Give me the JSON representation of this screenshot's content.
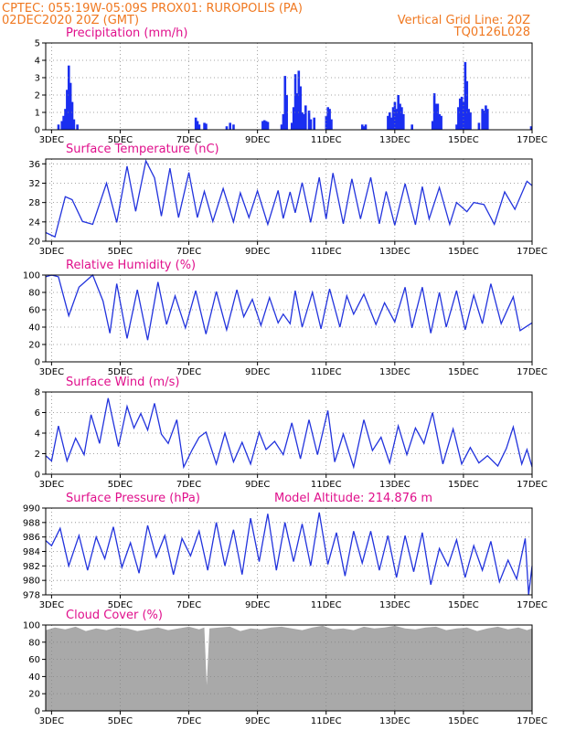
{
  "header": {
    "line1": "CPTEC:   055:19W-05:09S   PROX01: RUROPOLIS (PA)",
    "line2_left": "02DEC2020 20Z (GMT)",
    "line2_right": "Vertical Grid Line: 20Z",
    "line3_right": "TQ0126L028"
  },
  "x_axis": {
    "tick_labels": [
      "3DEC",
      "5DEC",
      "7DEC",
      "9DEC",
      "11DEC",
      "13DEC",
      "15DEC",
      "17DEC"
    ],
    "tick_days": [
      3,
      5,
      7,
      9,
      11,
      13,
      15,
      17
    ],
    "range_days": [
      2.83,
      17.0
    ]
  },
  "colors": {
    "line": "#2233dd",
    "bar": "#1a2ef0",
    "cloud": "#a9a9a9",
    "header": "#f07820",
    "title": "#e0108c"
  },
  "chart_data": [
    {
      "type": "bar",
      "title": "Precipitation (mm/h)",
      "ylim": [
        0,
        5
      ],
      "yticks": [
        0,
        1,
        2,
        3,
        4,
        5
      ],
      "grid": true,
      "x": [
        3.2,
        3.3,
        3.35,
        3.4,
        3.45,
        3.5,
        3.55,
        3.6,
        3.65,
        3.75,
        7.2,
        7.25,
        7.3,
        7.45,
        7.5,
        8.1,
        8.2,
        8.3,
        9.15,
        9.2,
        9.25,
        9.3,
        9.7,
        9.75,
        9.8,
        9.85,
        10.0,
        10.05,
        10.1,
        10.15,
        10.2,
        10.25,
        10.3,
        10.35,
        10.4,
        10.5,
        10.55,
        10.65,
        11.0,
        11.05,
        11.1,
        11.15,
        12.05,
        12.1,
        12.15,
        12.8,
        12.85,
        12.9,
        12.95,
        13.0,
        13.05,
        13.1,
        13.15,
        13.2,
        13.25,
        13.5,
        14.1,
        14.15,
        14.2,
        14.25,
        14.3,
        14.35,
        14.8,
        14.85,
        14.9,
        14.95,
        15.0,
        15.05,
        15.1,
        15.15,
        15.2,
        15.45,
        15.55,
        15.6,
        15.65,
        15.7,
        16.97
      ],
      "values": [
        0.3,
        0.5,
        0.8,
        1.2,
        2.3,
        3.7,
        2.7,
        1.6,
        0.6,
        0.3,
        0.7,
        0.5,
        0.3,
        0.4,
        0.35,
        0.2,
        0.4,
        0.3,
        0.5,
        0.55,
        0.5,
        0.45,
        0.3,
        0.9,
        3.1,
        2.0,
        0.4,
        1.3,
        3.2,
        2.1,
        3.4,
        2.5,
        1.0,
        0.9,
        1.4,
        1.1,
        0.6,
        0.7,
        0.8,
        1.3,
        1.2,
        0.6,
        0.3,
        0.2,
        0.3,
        0.8,
        1.0,
        0.7,
        1.3,
        1.6,
        1.2,
        2.0,
        1.5,
        1.3,
        0.9,
        0.3,
        0.5,
        2.1,
        1.5,
        1.5,
        0.9,
        0.8,
        0.3,
        1.3,
        1.8,
        1.9,
        1.6,
        3.9,
        2.8,
        1.2,
        1.0,
        0.4,
        1.2,
        1.1,
        1.4,
        1.2,
        0.2
      ]
    },
    {
      "type": "line",
      "title": "Surface Temperature (nC)",
      "ylim": [
        20,
        37
      ],
      "yticks": [
        20,
        24,
        28,
        32,
        36
      ],
      "grid": true,
      "x": [
        2.83,
        3.1,
        3.4,
        3.6,
        3.9,
        4.2,
        4.6,
        4.9,
        5.2,
        5.45,
        5.75,
        6.0,
        6.2,
        6.45,
        6.7,
        7.0,
        7.25,
        7.45,
        7.7,
        8.0,
        8.3,
        8.5,
        8.75,
        9.0,
        9.3,
        9.6,
        9.75,
        9.95,
        10.1,
        10.3,
        10.55,
        10.8,
        11.0,
        11.2,
        11.5,
        11.75,
        12.0,
        12.3,
        12.55,
        12.75,
        13.0,
        13.3,
        13.6,
        13.8,
        14.0,
        14.3,
        14.6,
        14.8,
        15.1,
        15.3,
        15.6,
        15.9,
        16.2,
        16.5,
        16.85,
        17.0
      ],
      "values": [
        21.8,
        20.9,
        29.2,
        28.6,
        24.1,
        23.5,
        32.0,
        23.9,
        35.5,
        26.2,
        36.6,
        33.1,
        25.2,
        35.1,
        24.9,
        34.2,
        24.9,
        30.3,
        24.1,
        30.9,
        24.0,
        30.0,
        24.9,
        30.4,
        23.5,
        30.5,
        24.7,
        30.2,
        25.9,
        32.1,
        23.9,
        33.2,
        24.6,
        34.1,
        23.6,
        32.9,
        24.6,
        33.2,
        23.6,
        30.3,
        23.3,
        31.9,
        23.4,
        31.3,
        24.6,
        31.1,
        23.5,
        28.0,
        26.1,
        28.0,
        27.6,
        23.5,
        30.2,
        26.6,
        32.4,
        31.5
      ]
    },
    {
      "type": "line",
      "title": "Relative Humidity (%)",
      "ylim": [
        0,
        100
      ],
      "yticks": [
        0,
        20,
        40,
        60,
        80,
        100
      ],
      "grid": true,
      "x": [
        2.83,
        3.0,
        3.2,
        3.5,
        3.8,
        4.2,
        4.5,
        4.7,
        4.9,
        5.2,
        5.5,
        5.8,
        6.1,
        6.35,
        6.6,
        6.9,
        7.2,
        7.5,
        7.8,
        8.1,
        8.4,
        8.6,
        8.85,
        9.1,
        9.35,
        9.6,
        9.75,
        9.95,
        10.1,
        10.3,
        10.6,
        10.85,
        11.1,
        11.4,
        11.6,
        11.8,
        12.1,
        12.45,
        12.7,
        13.0,
        13.3,
        13.5,
        13.8,
        14.05,
        14.3,
        14.5,
        14.8,
        15.05,
        15.3,
        15.55,
        15.8,
        16.1,
        16.45,
        16.65,
        17.0
      ],
      "values": [
        98,
        100,
        98,
        53,
        86,
        100,
        70,
        33,
        90,
        27,
        83,
        25,
        92,
        43,
        76,
        39,
        82,
        32,
        81,
        37,
        83,
        52,
        72,
        42,
        74,
        45,
        55,
        44,
        82,
        40,
        80,
        38,
        84,
        40,
        76,
        55,
        78,
        43,
        68,
        46,
        86,
        39,
        86,
        33,
        80,
        40,
        82,
        37,
        77,
        44,
        90,
        44,
        75,
        36,
        45
      ]
    },
    {
      "type": "line",
      "title": "Surface Wind (m/s)",
      "ylim": [
        0,
        8
      ],
      "yticks": [
        0,
        2,
        4,
        6,
        8
      ],
      "grid": true,
      "x": [
        2.83,
        3.0,
        3.2,
        3.45,
        3.7,
        3.95,
        4.15,
        4.4,
        4.65,
        4.95,
        5.2,
        5.4,
        5.6,
        5.8,
        6.0,
        6.2,
        6.4,
        6.65,
        6.85,
        7.1,
        7.3,
        7.5,
        7.8,
        8.05,
        8.3,
        8.55,
        8.8,
        9.05,
        9.25,
        9.5,
        9.75,
        10.0,
        10.25,
        10.5,
        10.75,
        11.05,
        11.25,
        11.5,
        11.8,
        12.1,
        12.35,
        12.6,
        12.85,
        13.1,
        13.35,
        13.6,
        13.85,
        14.1,
        14.4,
        14.7,
        14.95,
        15.2,
        15.45,
        15.7,
        16.0,
        16.25,
        16.45,
        16.7,
        16.85,
        17.0
      ],
      "values": [
        1.8,
        1.3,
        4.7,
        1.3,
        3.5,
        1.9,
        5.8,
        3.0,
        7.4,
        2.7,
        6.6,
        4.5,
        5.9,
        4.3,
        6.9,
        3.9,
        3.0,
        5.3,
        0.7,
        2.4,
        3.6,
        4.1,
        1.0,
        4.0,
        1.2,
        3.1,
        1.0,
        4.1,
        2.4,
        3.2,
        1.9,
        5.0,
        1.5,
        5.3,
        1.9,
        6.2,
        1.2,
        3.9,
        0.7,
        5.3,
        2.3,
        3.6,
        1.1,
        4.7,
        1.9,
        4.5,
        3.0,
        6.0,
        1.0,
        4.4,
        1.0,
        2.6,
        1.1,
        1.8,
        0.8,
        2.5,
        4.6,
        1.0,
        2.4,
        0.7
      ]
    },
    {
      "type": "line",
      "title": "Surface Pressure (hPa)",
      "annotation": "Model Altitude: 214.876 m",
      "ylim": [
        978,
        990
      ],
      "yticks": [
        978,
        980,
        982,
        984,
        986,
        988,
        990
      ],
      "grid": true,
      "x": [
        2.83,
        3.0,
        3.25,
        3.5,
        3.8,
        4.05,
        4.3,
        4.55,
        4.8,
        5.05,
        5.3,
        5.55,
        5.8,
        6.05,
        6.3,
        6.55,
        6.8,
        7.05,
        7.3,
        7.55,
        7.8,
        8.05,
        8.3,
        8.55,
        8.8,
        9.05,
        9.3,
        9.55,
        9.8,
        10.05,
        10.3,
        10.55,
        10.8,
        11.05,
        11.3,
        11.55,
        11.8,
        12.05,
        12.3,
        12.55,
        12.8,
        13.05,
        13.3,
        13.55,
        13.8,
        14.05,
        14.3,
        14.55,
        14.8,
        15.05,
        15.3,
        15.55,
        15.8,
        16.05,
        16.3,
        16.55,
        16.8,
        16.9,
        17.0
      ],
      "values": [
        985.5,
        984.8,
        987.2,
        982.0,
        986.2,
        981.4,
        986.0,
        983.0,
        987.4,
        981.8,
        985.2,
        981.0,
        987.6,
        983.2,
        986.2,
        980.8,
        985.8,
        983.4,
        986.8,
        981.4,
        988.0,
        982.0,
        987.0,
        980.8,
        988.6,
        982.6,
        989.2,
        981.4,
        988.0,
        982.6,
        987.8,
        982.0,
        989.4,
        982.2,
        986.6,
        980.6,
        986.8,
        982.4,
        986.8,
        981.4,
        986.2,
        980.4,
        986.2,
        981.2,
        986.6,
        979.4,
        984.4,
        982.0,
        985.6,
        980.4,
        984.8,
        981.4,
        985.4,
        979.8,
        982.8,
        980.2,
        985.8,
        978.0,
        982.0
      ]
    },
    {
      "type": "area",
      "title": "Cloud Cover (%)",
      "ylim": [
        0,
        100
      ],
      "yticks": [
        0,
        20,
        40,
        60,
        80,
        100
      ],
      "grid": true,
      "x": [
        2.83,
        3.1,
        3.4,
        3.7,
        4.0,
        4.3,
        4.6,
        4.9,
        5.2,
        5.5,
        5.8,
        6.1,
        6.4,
        6.7,
        7.0,
        7.3,
        7.45,
        7.52,
        7.6,
        7.9,
        8.2,
        8.5,
        8.8,
        9.1,
        9.4,
        9.7,
        10.0,
        10.3,
        10.6,
        10.9,
        11.2,
        11.5,
        11.8,
        12.1,
        12.4,
        12.7,
        13.0,
        13.3,
        13.6,
        13.9,
        14.2,
        14.5,
        14.8,
        15.1,
        15.4,
        15.7,
        16.0,
        16.3,
        16.6,
        16.85,
        17.0
      ],
      "values": [
        94,
        97,
        95,
        98,
        93,
        96,
        94,
        97,
        96,
        93,
        95,
        97,
        94,
        96,
        98,
        95,
        97,
        30,
        96,
        97,
        98,
        93,
        96,
        95,
        97,
        98,
        96,
        94,
        97,
        99,
        95,
        96,
        94,
        98,
        96,
        97,
        99,
        96,
        95,
        97,
        98,
        94,
        96,
        97,
        93,
        96,
        98,
        95,
        97,
        94,
        96
      ]
    }
  ]
}
